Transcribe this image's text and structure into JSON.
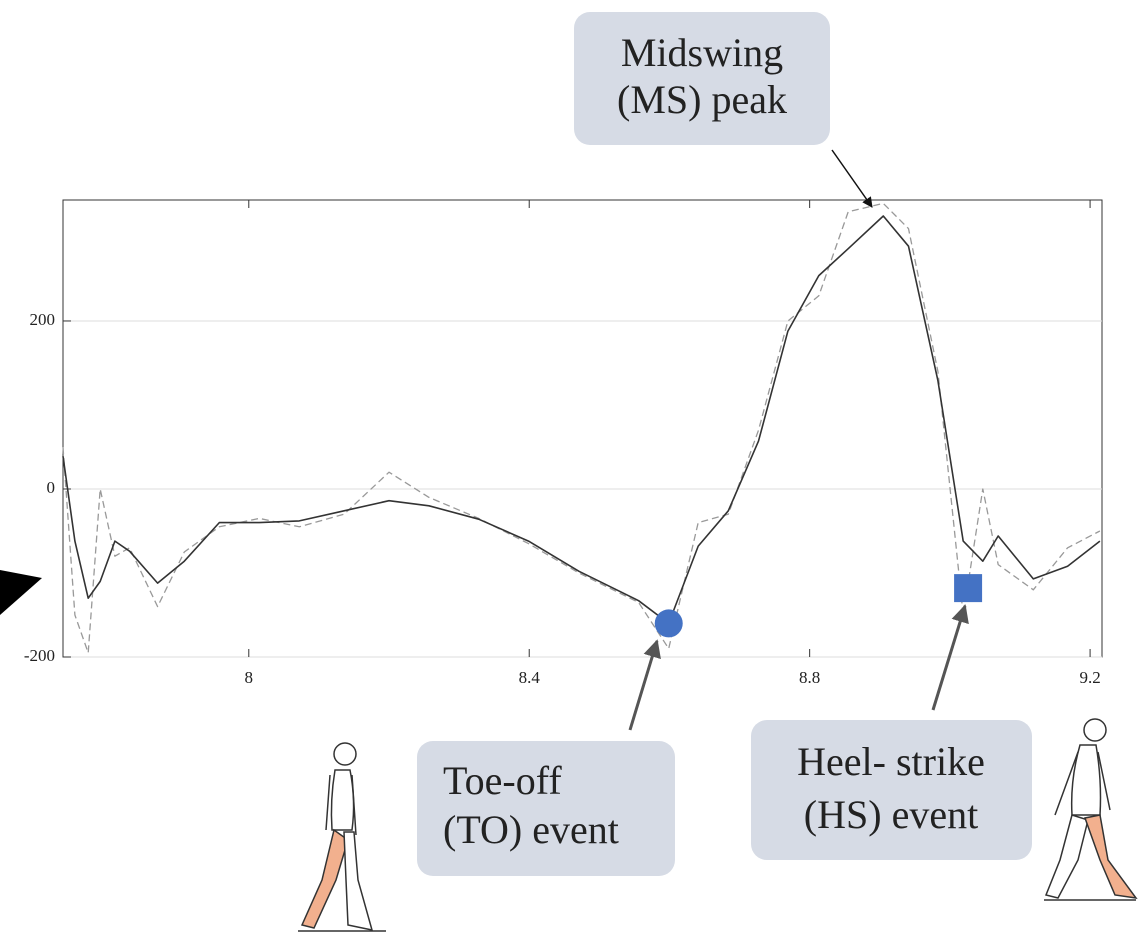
{
  "chart_data": {
    "type": "line",
    "xlim": [
      7.735,
      9.217
    ],
    "ylim": [
      -200,
      344
    ],
    "xticks": [
      8,
      8.4,
      8.8,
      9.2
    ],
    "yticks": [
      -200,
      0,
      200
    ],
    "grid": true,
    "x": [
      7.735,
      7.752,
      7.771,
      7.788,
      7.809,
      7.83,
      7.87,
      7.908,
      7.958,
      8.015,
      8.072,
      8.136,
      8.2,
      8.257,
      8.328,
      8.399,
      8.471,
      8.556,
      8.599,
      8.641,
      8.684,
      8.727,
      8.769,
      8.813,
      8.855,
      8.905,
      8.941,
      8.983,
      9.019,
      9.047,
      9.069,
      9.119,
      9.168,
      9.214
    ],
    "series": [
      {
        "color": "#333333",
        "style": "solid",
        "values": [
          39,
          -62,
          -130,
          -110,
          -62,
          -74,
          -112,
          -86,
          -40,
          -40,
          -38,
          -26,
          -14,
          -20,
          -36,
          -62,
          -98,
          -133,
          -160,
          -68,
          -26,
          57,
          188,
          254,
          286,
          325,
          289,
          129,
          -62,
          -86,
          -56,
          -107,
          -92,
          -62
        ]
      },
      {
        "color": "#999999",
        "style": "dashed",
        "values": [
          50,
          -150,
          -195,
          0,
          -80,
          -70,
          -140,
          -75,
          -45,
          -35,
          -45,
          -30,
          20,
          -10,
          -35,
          -65,
          -100,
          -135,
          -190,
          -40,
          -30,
          70,
          200,
          230,
          330,
          340,
          310,
          140,
          -150,
          0,
          -90,
          -120,
          -70,
          -50
        ]
      }
    ],
    "markers": [
      {
        "shape": "circle",
        "color": "#4472c4",
        "x": 8.599,
        "y": -160
      },
      {
        "shape": "square",
        "color": "#4472c4",
        "x": 9.026,
        "y": -118
      }
    ],
    "annotations": [
      {
        "lines": [
          "Midswing",
          "(MS) peak"
        ]
      },
      {
        "lines": [
          "Toe-off",
          "(TO) event"
        ]
      },
      {
        "lines": [
          "Heel- strike",
          "(HS) event"
        ]
      }
    ]
  }
}
